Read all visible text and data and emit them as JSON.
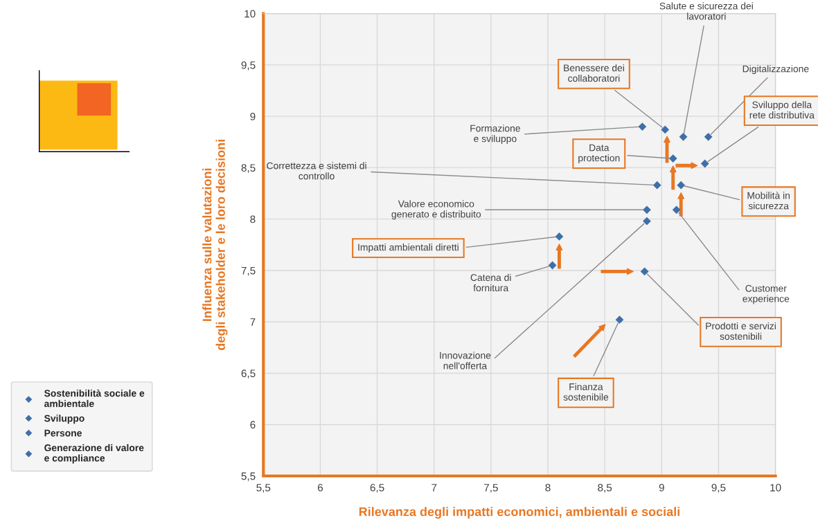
{
  "chart_data": {
    "type": "scatter",
    "xlabel": "Rilevanza degli impatti economici, ambientali e sociali",
    "ylabel": "Influenza sulle valutazioni\ndegli stakeholder e le loro decisioni",
    "xlim": [
      5.5,
      10
    ],
    "ylim": [
      5.5,
      10
    ],
    "xticks": [
      {
        "value": 5.5,
        "label": "5,5"
      },
      6,
      {
        "value": 6.5,
        "label": "6,5"
      },
      7,
      {
        "value": 7.5,
        "label": "7,5"
      },
      8,
      {
        "value": 8.5,
        "label": "8,5"
      },
      9,
      {
        "value": 9.5,
        "label": "9,5"
      },
      10
    ],
    "yticks": [
      {
        "value": 5.5,
        "label": "5,5"
      },
      6,
      {
        "value": 6.5,
        "label": "6,5"
      },
      7,
      {
        "value": 7.5,
        "label": "7,5"
      },
      8,
      {
        "value": 8.5,
        "label": "8,5"
      },
      9,
      {
        "value": 9.5,
        "label": "9,5"
      },
      10
    ],
    "grid": true,
    "marker": "diamond",
    "legend": "bottom left",
    "series": [
      {
        "name": "Sostenibilità sociale e ambientale",
        "color": "#3f6fa8",
        "x": [
          9.17,
          8.1,
          8.85,
          8.63
        ],
        "values": [
          8.33,
          7.83,
          7.49,
          7.02
        ]
      },
      {
        "name": "Sviluppo",
        "color": "#3f6fa8",
        "x": [
          9.41,
          9.38,
          9.13,
          8.87
        ],
        "values": [
          8.8,
          8.54,
          8.09,
          7.98
        ]
      },
      {
        "name": "Persone",
        "color": "#3f6fa8",
        "x": [
          8.83,
          9.03,
          9.19
        ],
        "values": [
          8.9,
          8.87,
          8.8
        ]
      },
      {
        "name": "Generazione di valore e compliance",
        "color": "#3f6fa8",
        "x": [
          9.1,
          8.96,
          8.87,
          8.04
        ],
        "values": [
          8.59,
          8.33,
          8.09,
          7.55
        ]
      }
    ],
    "annotations": [
      {
        "text": "Formazione\ne sviluppo",
        "x": 8.83,
        "y": 8.9
      },
      {
        "text": "Benessere dei\ncollaboratori",
        "x": 9.03,
        "y": 8.87
      },
      {
        "text": "Salute e sicurezza dei\nlavoratori",
        "x": 9.19,
        "y": 8.8
      },
      {
        "text": "Digitalizzazione",
        "x": 9.41,
        "y": 8.8
      },
      {
        "text": "Sviluppo della\nrete distributiva",
        "x": 9.38,
        "y": 8.54
      },
      {
        "text": "Data\nprotection",
        "x": 9.1,
        "y": 8.59
      },
      {
        "text": "Correttezza e sistemi di\ncontrollo",
        "x": 8.96,
        "y": 8.33
      },
      {
        "text": "Mobilità in\nsicurezza",
        "x": 9.17,
        "y": 8.33
      },
      {
        "text": "Valore economico\ngenerato e distribuito",
        "x": 8.87,
        "y": 8.09
      },
      {
        "text": "Customer\nexperience",
        "x": 9.13,
        "y": 8.09
      },
      {
        "text": "Innovazione\nnell'offerta",
        "x": 8.87,
        "y": 7.98
      },
      {
        "text": "Impatti ambientali diretti",
        "x": 8.1,
        "y": 7.83
      },
      {
        "text": "Catena di\nfornitura",
        "x": 8.04,
        "y": 7.55
      },
      {
        "text": "Prodotti e servizi\nsostenibili",
        "x": 8.85,
        "y": 7.49
      },
      {
        "text": "Finanza\nsostenibile",
        "x": 8.63,
        "y": 7.02
      }
    ]
  }
}
